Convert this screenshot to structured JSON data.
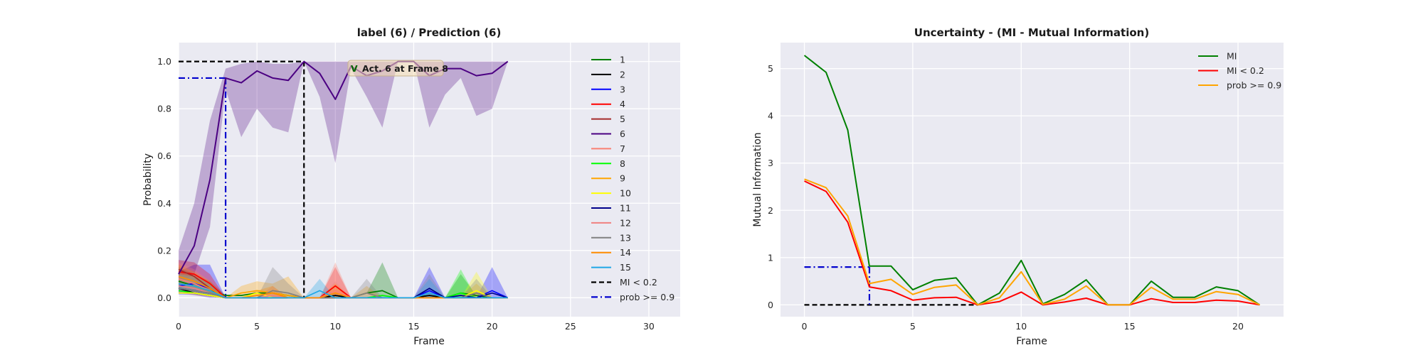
{
  "chart_data": [
    {
      "type": "line",
      "title": "label (6) / Prediction (6)",
      "xlabel": "Frame",
      "ylabel": "Probability",
      "xlim": [
        0,
        32
      ],
      "ylim": [
        -0.08,
        1.08
      ],
      "xticks": [
        "0",
        "5",
        "10",
        "15",
        "20",
        "25",
        "30"
      ],
      "yticks": [
        "0.0",
        "0.2",
        "0.4",
        "0.6",
        "0.8",
        "1.0"
      ],
      "grid": true,
      "legend_position": "right",
      "x": [
        0,
        1,
        2,
        3,
        4,
        5,
        6,
        7,
        8,
        9,
        10,
        11,
        12,
        13,
        14,
        15,
        16,
        17,
        18,
        19,
        20,
        21
      ],
      "series": [
        {
          "name": "1",
          "color": "#008000",
          "values": [
            0.07,
            0.05,
            0.03,
            0.01,
            0.01,
            0.02,
            0.02,
            0.01,
            0.0,
            0.0,
            0.01,
            0.0,
            0.02,
            0.03,
            0.0,
            0.0,
            0.01,
            0.0,
            0.02,
            0.01,
            0.0,
            0.0
          ],
          "band": [
            0.06,
            0.05,
            0.04,
            0.0,
            0.0,
            0.0,
            0.0,
            0.0,
            0.0,
            0.0,
            0.0,
            0.0,
            0.0,
            0.12,
            0.0,
            0.0,
            0.0,
            0.0,
            0.08,
            0.0,
            0.0,
            0.0
          ]
        },
        {
          "name": "2",
          "color": "#000000",
          "values": [
            0.04,
            0.02,
            0.01,
            0.0,
            0.0,
            0.0,
            0.0,
            0.0,
            0.0,
            0.0,
            0.01,
            0.0,
            0.0,
            0.0,
            0.0,
            0.0,
            0.01,
            0.0,
            0.0,
            0.02,
            0.0,
            0.0
          ]
        },
        {
          "name": "3",
          "color": "#0000ff",
          "values": [
            0.05,
            0.06,
            0.04,
            0.0,
            0.0,
            0.0,
            0.0,
            0.0,
            0.0,
            0.0,
            0.0,
            0.0,
            0.0,
            0.0,
            0.0,
            0.0,
            0.03,
            0.0,
            0.0,
            0.0,
            0.03,
            0.0
          ],
          "band": [
            0.06,
            0.08,
            0.1,
            0.0,
            0.0,
            0.0,
            0.0,
            0.0,
            0.0,
            0.0,
            0.0,
            0.0,
            0.0,
            0.0,
            0.0,
            0.0,
            0.1,
            0.0,
            0.0,
            0.0,
            0.1,
            0.0
          ]
        },
        {
          "name": "4",
          "color": "#ff0000",
          "values": [
            0.11,
            0.1,
            0.06,
            0.0,
            0.0,
            0.0,
            0.0,
            0.0,
            0.0,
            0.0,
            0.05,
            0.0,
            0.0,
            0.0,
            0.0,
            0.0,
            0.0,
            0.0,
            0.0,
            0.0,
            0.0,
            0.0
          ],
          "band": [
            0.05,
            0.05,
            0.04,
            0.0,
            0.0,
            0.0,
            0.0,
            0.0,
            0.0,
            0.0,
            0.08,
            0.0,
            0.0,
            0.0,
            0.0,
            0.0,
            0.0,
            0.0,
            0.0,
            0.0,
            0.0,
            0.0
          ]
        },
        {
          "name": "5",
          "color": "#a52a2a",
          "values": [
            0.12,
            0.09,
            0.04,
            0.0,
            0.0,
            0.0,
            0.0,
            0.0,
            0.0,
            0.0,
            0.0,
            0.0,
            0.0,
            0.0,
            0.0,
            0.0,
            0.0,
            0.0,
            0.0,
            0.0,
            0.0,
            0.0
          ]
        },
        {
          "name": "6",
          "color": "#4b0082",
          "values": [
            0.1,
            0.22,
            0.5,
            0.93,
            0.91,
            0.96,
            0.93,
            0.92,
            1.0,
            0.95,
            0.84,
            0.98,
            0.94,
            0.96,
            1.0,
            1.0,
            0.94,
            0.97,
            0.97,
            0.94,
            0.95,
            1.0
          ],
          "lower": [
            0.06,
            0.1,
            0.3,
            0.88,
            0.68,
            0.8,
            0.72,
            0.7,
            1.0,
            0.85,
            0.57,
            0.97,
            0.85,
            0.72,
            1.0,
            1.0,
            0.72,
            0.86,
            0.93,
            0.77,
            0.8,
            1.0
          ],
          "upper": [
            0.2,
            0.4,
            0.75,
            0.97,
            0.99,
            1.0,
            0.99,
            0.99,
            1.0,
            1.0,
            1.0,
            1.0,
            1.0,
            1.0,
            1.0,
            1.0,
            1.0,
            1.0,
            1.0,
            1.0,
            1.0,
            1.0
          ]
        },
        {
          "name": "7",
          "color": "#fa8072",
          "values": [
            0.08,
            0.06,
            0.03,
            0.0,
            0.0,
            0.0,
            0.0,
            0.0,
            0.0,
            0.0,
            0.03,
            0.0,
            0.0,
            0.0,
            0.0,
            0.0,
            0.0,
            0.0,
            0.0,
            0.0,
            0.0,
            0.0
          ],
          "band": [
            0.07,
            0.06,
            0.04,
            0.0,
            0.0,
            0.0,
            0.0,
            0.0,
            0.0,
            0.0,
            0.12,
            0.0,
            0.0,
            0.0,
            0.0,
            0.0,
            0.0,
            0.0,
            0.0,
            0.0,
            0.0,
            0.0
          ]
        },
        {
          "name": "8",
          "color": "#00ff00",
          "values": [
            0.03,
            0.02,
            0.01,
            0.0,
            0.0,
            0.0,
            0.0,
            0.0,
            0.0,
            0.0,
            0.0,
            0.0,
            0.0,
            0.01,
            0.0,
            0.0,
            0.0,
            0.0,
            0.02,
            0.0,
            0.0,
            0.0
          ],
          "band": [
            0.0,
            0.0,
            0.0,
            0.0,
            0.0,
            0.0,
            0.0,
            0.0,
            0.0,
            0.0,
            0.0,
            0.0,
            0.0,
            0.0,
            0.0,
            0.0,
            0.0,
            0.0,
            0.1,
            0.0,
            0.0,
            0.0
          ]
        },
        {
          "name": "9",
          "color": "#ffa500",
          "values": [
            0.06,
            0.05,
            0.03,
            0.0,
            0.02,
            0.03,
            0.02,
            0.01,
            0.0,
            0.0,
            0.0,
            0.0,
            0.02,
            0.0,
            0.0,
            0.0,
            0.0,
            0.0,
            0.0,
            0.02,
            0.0,
            0.0
          ],
          "band": [
            0.04,
            0.04,
            0.03,
            0.0,
            0.03,
            0.04,
            0.04,
            0.08,
            0.0,
            0.0,
            0.0,
            0.0,
            0.03,
            0.0,
            0.0,
            0.0,
            0.0,
            0.0,
            0.0,
            0.04,
            0.0,
            0.0
          ]
        },
        {
          "name": "10",
          "color": "#ffff00",
          "values": [
            0.02,
            0.02,
            0.01,
            0.0,
            0.0,
            0.02,
            0.0,
            0.0,
            0.0,
            0.0,
            0.0,
            0.0,
            0.0,
            0.0,
            0.0,
            0.0,
            0.0,
            0.0,
            0.0,
            0.03,
            0.0,
            0.0
          ],
          "band": [
            0.0,
            0.0,
            0.0,
            0.0,
            0.0,
            0.0,
            0.0,
            0.0,
            0.0,
            0.0,
            0.0,
            0.0,
            0.0,
            0.0,
            0.0,
            0.0,
            0.0,
            0.0,
            0.0,
            0.08,
            0.0,
            0.0
          ]
        },
        {
          "name": "11",
          "color": "#00008b",
          "values": [
            0.04,
            0.03,
            0.02,
            0.0,
            0.0,
            0.0,
            0.0,
            0.0,
            0.0,
            0.0,
            0.0,
            0.0,
            0.0,
            0.0,
            0.0,
            0.0,
            0.04,
            0.0,
            0.01,
            0.0,
            0.02,
            0.0
          ]
        },
        {
          "name": "12",
          "color": "#f08080",
          "values": [
            0.05,
            0.04,
            0.02,
            0.0,
            0.0,
            0.0,
            0.01,
            0.0,
            0.0,
            0.0,
            0.02,
            0.0,
            0.0,
            0.0,
            0.0,
            0.0,
            0.0,
            0.0,
            0.0,
            0.0,
            0.0,
            0.0
          ],
          "band": [
            0.05,
            0.05,
            0.03,
            0.0,
            0.0,
            0.0,
            0.04,
            0.0,
            0.0,
            0.0,
            0.05,
            0.0,
            0.0,
            0.0,
            0.0,
            0.0,
            0.0,
            0.0,
            0.0,
            0.0,
            0.0,
            0.0
          ]
        },
        {
          "name": "13",
          "color": "#808080",
          "values": [
            0.04,
            0.03,
            0.02,
            0.0,
            0.0,
            0.0,
            0.03,
            0.02,
            0.0,
            0.0,
            0.0,
            0.0,
            0.02,
            0.0,
            0.0,
            0.0,
            0.02,
            0.0,
            0.0,
            0.02,
            0.0,
            0.0
          ],
          "band": [
            0.03,
            0.03,
            0.02,
            0.0,
            0.0,
            0.0,
            0.1,
            0.04,
            0.0,
            0.0,
            0.0,
            0.0,
            0.06,
            0.0,
            0.0,
            0.0,
            0.08,
            0.0,
            0.0,
            0.06,
            0.0,
            0.0
          ]
        },
        {
          "name": "14",
          "color": "#ff8c00",
          "values": [
            0.09,
            0.07,
            0.04,
            0.0,
            0.0,
            0.01,
            0.02,
            0.0,
            0.0,
            0.0,
            0.02,
            0.0,
            0.0,
            0.0,
            0.0,
            0.0,
            0.0,
            0.0,
            0.0,
            0.0,
            0.0,
            0.0
          ],
          "band": [
            0.05,
            0.04,
            0.03,
            0.0,
            0.0,
            0.02,
            0.03,
            0.0,
            0.0,
            0.0,
            0.04,
            0.0,
            0.0,
            0.0,
            0.0,
            0.0,
            0.0,
            0.0,
            0.0,
            0.0,
            0.0,
            0.0
          ]
        },
        {
          "name": "15",
          "color": "#1ea7e6",
          "values": [
            0.06,
            0.05,
            0.03,
            0.0,
            0.0,
            0.0,
            0.0,
            0.0,
            0.0,
            0.03,
            0.0,
            0.0,
            0.0,
            0.0,
            0.0,
            0.0,
            0.02,
            0.0,
            0.0,
            0.0,
            0.0,
            0.0
          ],
          "band": [
            0.04,
            0.04,
            0.03,
            0.0,
            0.0,
            0.0,
            0.0,
            0.0,
            0.0,
            0.05,
            0.0,
            0.0,
            0.0,
            0.0,
            0.0,
            0.0,
            0.06,
            0.0,
            0.0,
            0.0,
            0.0,
            0.0
          ]
        }
      ],
      "thresholds": [
        {
          "name": "MI < 0.2",
          "color": "#000000",
          "dash": "dashed",
          "x_at": 8,
          "y_at": 1.0
        },
        {
          "name": "prob >= 0.9",
          "color": "#0000cd",
          "dash": "dashdot",
          "x_at": 3,
          "y_at": 0.93
        }
      ],
      "annotation": {
        "mark": "V",
        "text": "Act. 6 at Frame 8",
        "x": 11,
        "y": 0.93
      }
    },
    {
      "type": "line",
      "title": "Uncertainty - (MI - Mutual Information)",
      "xlabel": "Frame",
      "ylabel": "Mutual Information",
      "xlim": [
        -1.1,
        22.1
      ],
      "ylim": [
        -0.25,
        5.55
      ],
      "xticks": [
        "0",
        "5",
        "10",
        "15",
        "20"
      ],
      "yticks": [
        "0",
        "1",
        "2",
        "3",
        "4",
        "5"
      ],
      "grid": true,
      "legend_position": "top-right",
      "x": [
        0,
        1,
        2,
        3,
        4,
        5,
        6,
        7,
        8,
        9,
        10,
        11,
        12,
        13,
        14,
        15,
        16,
        17,
        18,
        19,
        20,
        21
      ],
      "series": [
        {
          "name": "MI",
          "color": "#008000",
          "values": [
            5.28,
            4.92,
            3.7,
            0.82,
            0.82,
            0.32,
            0.52,
            0.57,
            0.0,
            0.25,
            0.94,
            0.02,
            0.22,
            0.53,
            0.0,
            0.0,
            0.5,
            0.16,
            0.16,
            0.38,
            0.3,
            0.0
          ]
        },
        {
          "name": "MI < 0.2",
          "color": "#ff0000",
          "values": [
            2.62,
            2.4,
            1.75,
            0.38,
            0.3,
            0.1,
            0.15,
            0.16,
            0.0,
            0.07,
            0.27,
            0.0,
            0.06,
            0.14,
            0.0,
            0.0,
            0.13,
            0.05,
            0.05,
            0.1,
            0.08,
            0.0
          ]
        },
        {
          "name": "prob >= 0.9",
          "color": "#ffa500",
          "values": [
            2.66,
            2.48,
            1.88,
            0.45,
            0.54,
            0.22,
            0.37,
            0.42,
            0.0,
            0.15,
            0.7,
            0.01,
            0.12,
            0.4,
            0.0,
            0.0,
            0.37,
            0.12,
            0.12,
            0.28,
            0.22,
            0.0
          ]
        }
      ],
      "thresholds": [
        {
          "color": "#000000",
          "dash": "dashed",
          "from_x": 0,
          "to_x": 8,
          "y_at": 0.0
        },
        {
          "color": "#0000cd",
          "dash": "dashdot",
          "from_x": 0,
          "to_x": 3,
          "y_at": 0.8
        }
      ]
    }
  ]
}
